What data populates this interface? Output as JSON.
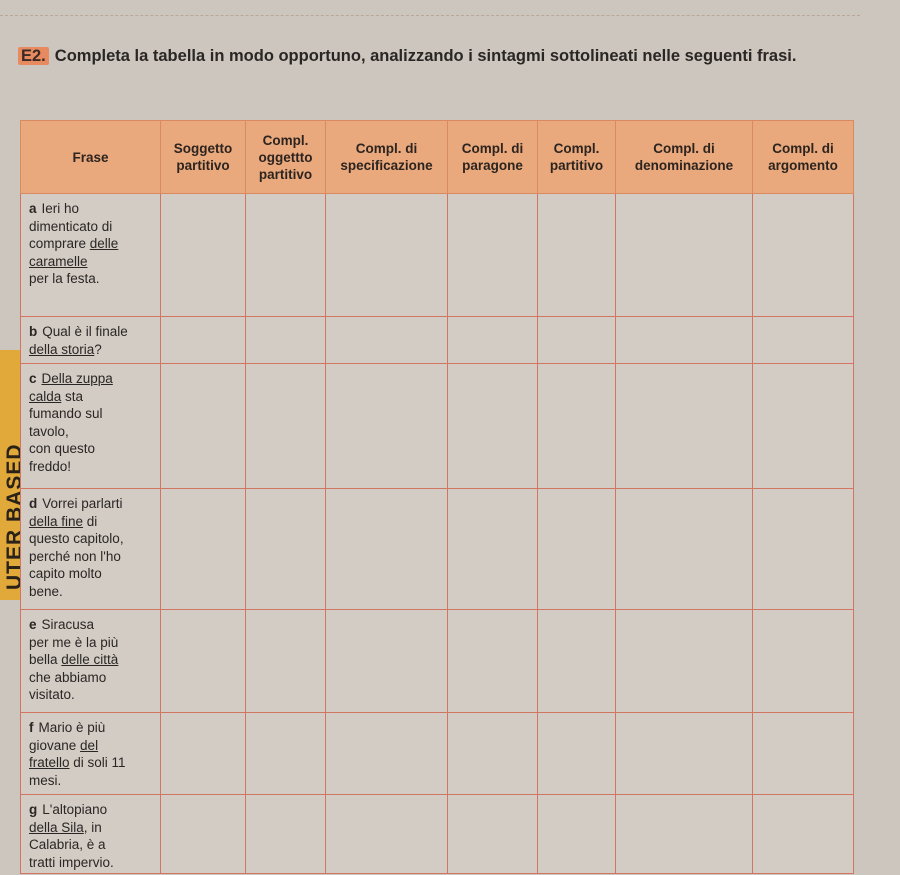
{
  "side_tab": "UTER BASED",
  "exercise": {
    "number": "E2.",
    "instruction": "Completa la tabella in modo opportuno, analizzando i sintagmi sottolineati nelle seguenti frasi."
  },
  "table": {
    "headers": [
      "Frase",
      "Soggetto partitivo",
      "Compl. oggettto partitivo",
      "Compl. di specificazione",
      "Compl. di paragone",
      "Compl. partitivo",
      "Compl. di denominazione",
      "Compl. di argomento"
    ],
    "rows": [
      {
        "letter": "a",
        "lines": [
          [
            {
              "t": "Ieri ho"
            }
          ],
          [
            {
              "t": "dimenticato di"
            }
          ],
          [
            {
              "t": "comprare "
            },
            {
              "t": "delle",
              "u": true
            }
          ],
          [
            {
              "t": "caramelle",
              "u": true
            }
          ],
          [
            {
              "t": "per la festa."
            }
          ]
        ]
      },
      {
        "letter": "b",
        "lines": [
          [
            {
              "t": "Qual è il finale"
            }
          ],
          [
            {
              "t": "della storia",
              "u": true
            },
            {
              "t": "?"
            }
          ]
        ]
      },
      {
        "letter": "c",
        "lines": [
          [
            {
              "t": "Della zuppa ",
              "u": true
            }
          ],
          [
            {
              "t": "calda",
              "u": true
            },
            {
              "t": " sta"
            }
          ],
          [
            {
              "t": "fumando sul"
            }
          ],
          [
            {
              "t": "tavolo,"
            }
          ],
          [
            {
              "t": "con questo"
            }
          ],
          [
            {
              "t": "freddo!"
            }
          ]
        ]
      },
      {
        "letter": "d",
        "lines": [
          [
            {
              "t": "Vorrei parlarti"
            }
          ],
          [
            {
              "t": "della fine",
              "u": true
            },
            {
              "t": " di"
            }
          ],
          [
            {
              "t": "questo capitolo,"
            }
          ],
          [
            {
              "t": "perché non l'ho"
            }
          ],
          [
            {
              "t": "capito molto"
            }
          ],
          [
            {
              "t": "bene."
            }
          ]
        ]
      },
      {
        "letter": "e",
        "lines": [
          [
            {
              "t": "Siracusa"
            }
          ],
          [
            {
              "t": "per me è la più"
            }
          ],
          [
            {
              "t": "bella "
            },
            {
              "t": "delle città",
              "u": true
            }
          ],
          [
            {
              "t": "che abbiamo"
            }
          ],
          [
            {
              "t": "visitato."
            }
          ]
        ]
      },
      {
        "letter": "f",
        "lines": [
          [
            {
              "t": "Mario è più"
            }
          ],
          [
            {
              "t": "giovane "
            },
            {
              "t": "del ",
              "u": true
            }
          ],
          [
            {
              "t": "fratello",
              "u": true
            },
            {
              "t": " di soli 11"
            }
          ],
          [
            {
              "t": "mesi."
            }
          ]
        ]
      },
      {
        "letter": "g",
        "lines": [
          [
            {
              "t": "L'altopiano"
            }
          ],
          [
            {
              "t": "della Sila",
              "u": true
            },
            {
              "t": ", in"
            }
          ],
          [
            {
              "t": "Calabria, è a"
            }
          ],
          [
            {
              "t": "tratti impervio."
            }
          ]
        ]
      }
    ]
  },
  "colors": {
    "header_bg": "#e9a97c",
    "grid": "#d27563",
    "badge": "#e88a60",
    "side_tab": "#e0a93a"
  }
}
